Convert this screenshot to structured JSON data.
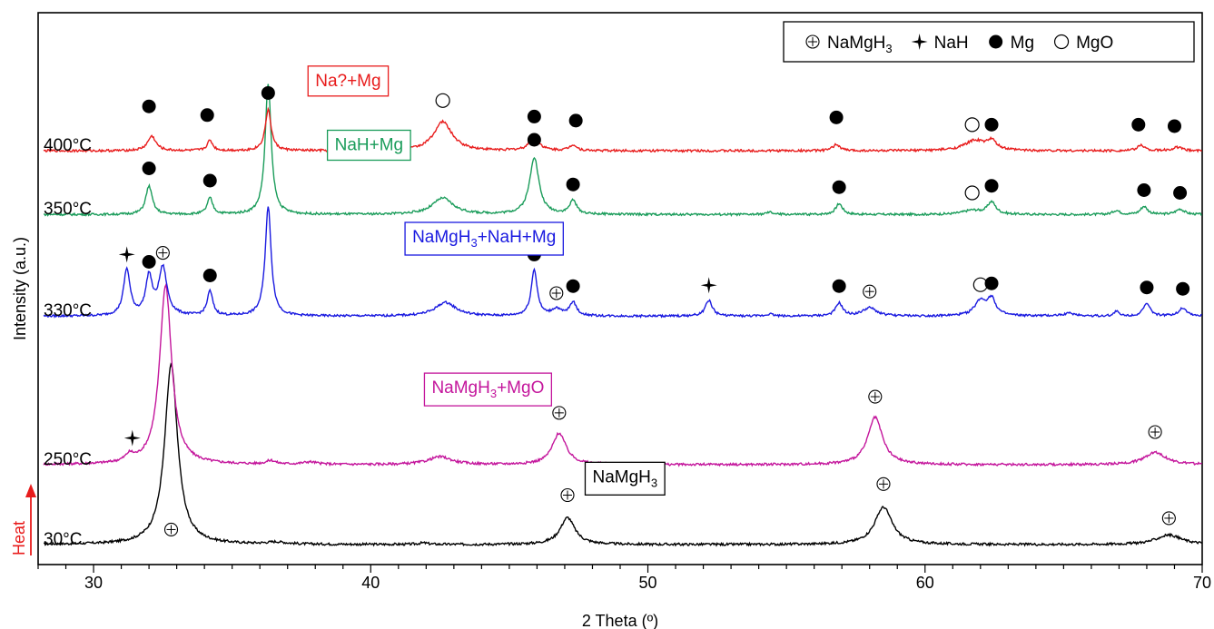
{
  "chart_data": {
    "type": "line",
    "title": "",
    "xlabel": "2 Theta (º)",
    "ylabel": "Intensity (a.u.)",
    "xlim": [
      28,
      70
    ],
    "x_ticks": [
      30,
      40,
      50,
      60,
      70
    ],
    "y_ticks_shown": false,
    "grid": false,
    "legend_position": "top-right",
    "legend": [
      {
        "symbol": "circle-plus",
        "label": "NaMgH",
        "sub": "3"
      },
      {
        "symbol": "star",
        "label": "NaH",
        "sub": ""
      },
      {
        "symbol": "filled-circle",
        "label": "Mg",
        "sub": ""
      },
      {
        "symbol": "open-circle",
        "label": "MgO",
        "sub": ""
      }
    ],
    "heat_label": "Heat",
    "series": [
      {
        "name": "30°C",
        "color": "#000000",
        "phase_label": {
          "parts": [
            {
              "t": "NaMgH"
            },
            {
              "t": "3",
              "sub": true
            }
          ],
          "x": 48.0,
          "y": 0.99,
          "border": "#000000",
          "text_color": "#000000"
        },
        "peaks": [
          [
            32.8,
            6.0,
            0.28
          ],
          [
            36.6,
            0.07,
            0.4
          ],
          [
            47.1,
            0.9,
            0.32
          ],
          [
            58.5,
            1.25,
            0.38
          ],
          [
            68.8,
            0.32,
            0.55
          ],
          [
            41.9,
            0.05,
            0.2
          ]
        ],
        "markers": [
          [
            "circle-plus",
            32.8,
            0.38
          ],
          [
            "circle-plus",
            47.1,
            1.53
          ],
          [
            "circle-plus",
            58.5,
            1.9
          ],
          [
            "circle-plus",
            68.8,
            0.76
          ]
        ]
      },
      {
        "name": "250°C",
        "color": "#c4169c",
        "phase_label": {
          "parts": [
            {
              "t": "NaMgH"
            },
            {
              "t": "3",
              "sub": true
            },
            {
              "t": "+MgO"
            }
          ],
          "x": 42.2,
          "y": 1.3,
          "border": "#c4169c",
          "text_color": "#c4169c"
        },
        "peaks": [
          [
            31.3,
            0.22,
            0.18
          ],
          [
            32.6,
            6.0,
            0.26
          ],
          [
            36.4,
            0.12,
            0.2
          ],
          [
            37.8,
            0.08,
            0.3
          ],
          [
            42.5,
            0.26,
            0.5
          ],
          [
            46.8,
            1.05,
            0.3
          ],
          [
            58.2,
            1.58,
            0.32
          ],
          [
            68.3,
            0.42,
            0.45
          ]
        ],
        "markers": [
          [
            "star",
            31.4,
            0.77
          ],
          [
            "circle-plus",
            46.8,
            1.61
          ],
          [
            "circle-plus",
            58.2,
            2.15
          ],
          [
            "circle-plus",
            68.3,
            0.97
          ]
        ]
      },
      {
        "name": "330°C",
        "color": "#1a1ae0",
        "phase_label": {
          "parts": [
            {
              "t": "NaMgH"
            },
            {
              "t": "3",
              "sub": true
            },
            {
              "t": "+NaH+Mg"
            }
          ],
          "x": 41.5,
          "y": 1.5,
          "border": "#1a1ae0",
          "text_color": "#1a1ae0"
        },
        "peaks": [
          [
            31.2,
            1.7,
            0.14
          ],
          [
            32.0,
            1.4,
            0.14
          ],
          [
            32.5,
            1.75,
            0.18
          ],
          [
            34.2,
            0.9,
            0.12
          ],
          [
            36.3,
            4.0,
            0.13
          ],
          [
            42.7,
            0.5,
            0.45
          ],
          [
            45.9,
            1.7,
            0.13
          ],
          [
            46.7,
            0.25,
            0.2
          ],
          [
            47.3,
            0.5,
            0.15
          ],
          [
            52.2,
            0.58,
            0.15
          ],
          [
            54.4,
            0.08,
            0.15
          ],
          [
            56.9,
            0.47,
            0.15
          ],
          [
            58.0,
            0.3,
            0.3
          ],
          [
            62.0,
            0.55,
            0.25
          ],
          [
            62.4,
            0.6,
            0.18
          ],
          [
            65.2,
            0.1,
            0.3
          ],
          [
            66.9,
            0.18,
            0.1
          ],
          [
            68.0,
            0.45,
            0.15
          ],
          [
            69.3,
            0.3,
            0.18
          ]
        ],
        "markers": [
          [
            "star",
            31.2,
            2.12
          ],
          [
            "circle-plus",
            32.5,
            2.18
          ],
          [
            "filled-circle",
            32.0,
            1.85
          ],
          [
            "filled-circle",
            34.2,
            1.35
          ],
          [
            "filled-circle",
            45.9,
            2.12
          ],
          [
            "circle-plus",
            46.7,
            0.7
          ],
          [
            "filled-circle",
            47.3,
            0.96
          ],
          [
            "star",
            52.2,
            0.99
          ],
          [
            "filled-circle",
            56.9,
            0.96
          ],
          [
            "circle-plus",
            58.0,
            0.76
          ],
          [
            "open-circle",
            62.0,
            1.01
          ],
          [
            "filled-circle",
            62.4,
            1.06
          ],
          [
            "filled-circle",
            68.0,
            0.91
          ],
          [
            "filled-circle",
            69.3,
            0.86
          ]
        ]
      },
      {
        "name": "350°C",
        "color": "#1a9c5a",
        "phase_label": {
          "parts": [
            {
              "t": "NaH+Mg"
            }
          ],
          "x": 38.7,
          "y": 1.15,
          "border": "#1a9c5a",
          "text_color": "#1a9c5a"
        },
        "peaks": [
          [
            32.0,
            1.05,
            0.14
          ],
          [
            34.2,
            0.6,
            0.12
          ],
          [
            36.3,
            4.8,
            0.13
          ],
          [
            42.6,
            0.6,
            0.45
          ],
          [
            45.9,
            2.1,
            0.2
          ],
          [
            47.3,
            0.5,
            0.15
          ],
          [
            54.4,
            0.08,
            0.15
          ],
          [
            56.9,
            0.4,
            0.15
          ],
          [
            62.4,
            0.45,
            0.18
          ],
          [
            61.7,
            0.15,
            0.4
          ],
          [
            66.9,
            0.15,
            0.15
          ],
          [
            67.9,
            0.3,
            0.15
          ],
          [
            69.2,
            0.2,
            0.18
          ]
        ],
        "markers": [
          [
            "filled-circle",
            32.0,
            1.55
          ],
          [
            "filled-circle",
            34.2,
            1.1
          ],
          [
            "filled-circle",
            45.9,
            2.6
          ],
          [
            "filled-circle",
            47.3,
            0.96
          ],
          [
            "filled-circle",
            56.9,
            0.86
          ],
          [
            "open-circle",
            61.7,
            0.65
          ],
          [
            "filled-circle",
            62.4,
            0.91
          ],
          [
            "filled-circle",
            67.9,
            0.75
          ],
          [
            "filled-circle",
            69.2,
            0.65
          ]
        ]
      },
      {
        "name": "400°C",
        "color": "#e81c1c",
        "phase_label": {
          "parts": [
            {
              "t": "Na?+Mg"
            }
          ],
          "x": 38.0,
          "y": 1.1,
          "border": "#e81c1c",
          "text_color": "#e81c1c"
        },
        "peaks": [
          [
            32.1,
            0.5,
            0.18
          ],
          [
            34.2,
            0.35,
            0.12
          ],
          [
            36.3,
            1.4,
            0.13
          ],
          [
            42.6,
            1.0,
            0.4
          ],
          [
            45.9,
            0.5,
            0.2
          ],
          [
            47.3,
            0.2,
            0.15
          ],
          [
            56.8,
            0.22,
            0.15
          ],
          [
            61.8,
            0.35,
            0.45
          ],
          [
            62.4,
            0.3,
            0.2
          ],
          [
            67.8,
            0.2,
            0.15
          ],
          [
            69.1,
            0.12,
            0.2
          ]
        ],
        "markers": [
          [
            "filled-circle",
            32.0,
            1.4
          ],
          [
            "filled-circle",
            34.1,
            1.1
          ],
          [
            "filled-circle",
            36.3,
            1.86
          ],
          [
            "open-circle",
            42.6,
            1.6
          ],
          [
            "filled-circle",
            45.9,
            1.05
          ],
          [
            "filled-circle",
            47.4,
            0.91
          ],
          [
            "filled-circle",
            56.8,
            1.02
          ],
          [
            "open-circle",
            61.7,
            0.77
          ],
          [
            "filled-circle",
            62.4,
            0.77
          ],
          [
            "filled-circle",
            67.7,
            0.77
          ],
          [
            "filled-circle",
            69.0,
            0.72
          ]
        ]
      }
    ]
  }
}
